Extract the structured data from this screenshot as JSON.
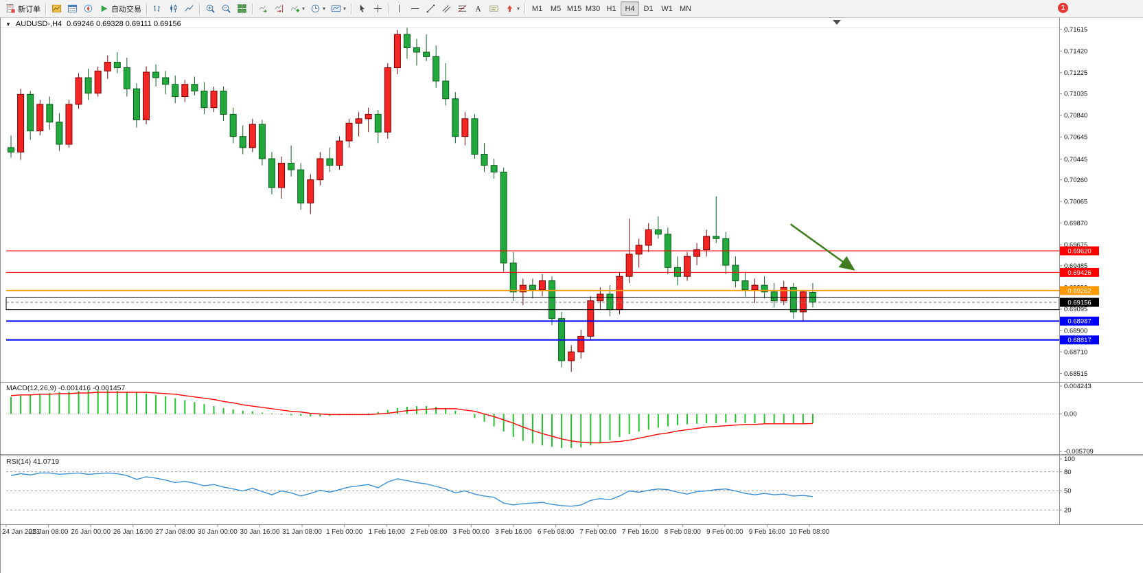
{
  "toolbar": {
    "new_order_label": "新订单",
    "autotrading_label": "自动交易",
    "timeframes": [
      "M1",
      "M5",
      "M15",
      "M30",
      "H1",
      "H4",
      "D1",
      "W1",
      "MN"
    ],
    "active_timeframe": "H4",
    "notification_badge": "1",
    "icons": [
      "new-order",
      "charts",
      "market-watch",
      "navigator",
      "autotrading",
      "bar-chart",
      "candlesticks",
      "line-chart",
      "zoom-in",
      "zoom-out",
      "tile-windows",
      "auto-scroll",
      "chart-shift",
      "indicators",
      "periods",
      "templates",
      "cursor",
      "crosshair",
      "vertical-line",
      "horizontal-line",
      "trendline",
      "equidistant-channel",
      "fibonacci",
      "text",
      "text-label",
      "arrows"
    ]
  },
  "chart": {
    "one_click_glyph": "▼",
    "symbol_period": "AUDUSD-,H4",
    "ohlc": "0.69246 0.69328 0.69111 0.69156"
  },
  "chart_data": [
    {
      "id": "price",
      "type": "candlestick",
      "symbol": "AUDUSD-",
      "timeframe": "H4",
      "current": {
        "open": 0.69246,
        "high": 0.69328,
        "low": 0.69111,
        "close": 0.69156
      },
      "ylim": [
        0.685,
        0.7162
      ],
      "y_ticks": [
        "0.71615",
        "0.71420",
        "0.71225",
        "0.71035",
        "0.70840",
        "0.70645",
        "0.70445",
        "0.70260",
        "0.70065",
        "0.69870",
        "0.69675",
        "0.69485",
        "0.69290",
        "0.69095",
        "0.68900",
        "0.68710",
        "0.68515"
      ],
      "x_labels": [
        "24 Jan 2023",
        "25 Jan 08:00",
        "26 Jan 00:00",
        "26 Jan 16:00",
        "27 Jan 08:00",
        "30 Jan 00:00",
        "30 Jan 16:00",
        "31 Jan 08:00",
        "1 Feb 00:00",
        "1 Feb 16:00",
        "2 Feb 08:00",
        "3 Feb 00:00",
        "3 Feb 16:00",
        "6 Feb 08:00",
        "7 Feb 00:00",
        "7 Feb 16:00",
        "8 Feb 08:00",
        "9 Feb 00:00",
        "9 Feb 16:00",
        "10 Feb 08:00"
      ],
      "colors": {
        "up": "#f42525",
        "down": "#22a83c",
        "up_border": "#7a0000",
        "down_border": "#0b5e1e"
      },
      "candles": [
        [
          0.7055,
          0.7066,
          0.7046,
          0.7051
        ],
        [
          0.7051,
          0.7108,
          0.7044,
          0.7103
        ],
        [
          0.7103,
          0.7106,
          0.7062,
          0.707
        ],
        [
          0.707,
          0.7098,
          0.7066,
          0.7094
        ],
        [
          0.7094,
          0.7101,
          0.7071,
          0.7078
        ],
        [
          0.7078,
          0.7086,
          0.7052,
          0.7058
        ],
        [
          0.7058,
          0.7098,
          0.7055,
          0.7094
        ],
        [
          0.7094,
          0.7122,
          0.709,
          0.7118
        ],
        [
          0.7118,
          0.7126,
          0.7098,
          0.7104
        ],
        [
          0.7104,
          0.7128,
          0.7101,
          0.7124
        ],
        [
          0.7124,
          0.7138,
          0.7117,
          0.7132
        ],
        [
          0.7132,
          0.7141,
          0.7122,
          0.7127
        ],
        [
          0.7127,
          0.7136,
          0.7101,
          0.7108
        ],
        [
          0.7108,
          0.7113,
          0.7073,
          0.708
        ],
        [
          0.708,
          0.7128,
          0.7076,
          0.7123
        ],
        [
          0.7123,
          0.713,
          0.711,
          0.7118
        ],
        [
          0.7118,
          0.7124,
          0.7103,
          0.7112
        ],
        [
          0.7112,
          0.712,
          0.7095,
          0.7101
        ],
        [
          0.7101,
          0.7116,
          0.7096,
          0.7112
        ],
        [
          0.7112,
          0.7119,
          0.7102,
          0.7106
        ],
        [
          0.7106,
          0.7114,
          0.7085,
          0.7091
        ],
        [
          0.7091,
          0.711,
          0.7087,
          0.7106
        ],
        [
          0.7106,
          0.711,
          0.7079,
          0.7085
        ],
        [
          0.7085,
          0.7091,
          0.7059,
          0.7065
        ],
        [
          0.7065,
          0.7075,
          0.7049,
          0.7055
        ],
        [
          0.7055,
          0.7081,
          0.7051,
          0.7076
        ],
        [
          0.7076,
          0.708,
          0.7039,
          0.7045
        ],
        [
          0.7045,
          0.7051,
          0.7013,
          0.7019
        ],
        [
          0.7019,
          0.7047,
          0.7009,
          0.7041
        ],
        [
          0.7041,
          0.7057,
          0.7029,
          0.7035
        ],
        [
          0.7035,
          0.7041,
          0.6999,
          0.7005
        ],
        [
          0.7005,
          0.7031,
          0.6995,
          0.7026
        ],
        [
          0.7026,
          0.7051,
          0.7021,
          0.7045
        ],
        [
          0.7045,
          0.7055,
          0.7033,
          0.7039
        ],
        [
          0.7039,
          0.7065,
          0.7035,
          0.7061
        ],
        [
          0.7061,
          0.7081,
          0.7055,
          0.7077
        ],
        [
          0.7077,
          0.7087,
          0.7065,
          0.7081
        ],
        [
          0.7081,
          0.7091,
          0.7069,
          0.7085
        ],
        [
          0.7085,
          0.7089,
          0.7059,
          0.7069
        ],
        [
          0.7069,
          0.7131,
          0.7063,
          0.7127
        ],
        [
          0.7127,
          0.7161,
          0.7121,
          0.7157
        ],
        [
          0.7157,
          0.7163,
          0.7135,
          0.7145
        ],
        [
          0.7145,
          0.7153,
          0.7129,
          0.7141
        ],
        [
          0.7141,
          0.7157,
          0.7133,
          0.7137
        ],
        [
          0.7137,
          0.7147,
          0.7109,
          0.7115
        ],
        [
          0.7115,
          0.7131,
          0.7093,
          0.7099
        ],
        [
          0.7099,
          0.7105,
          0.7059,
          0.7065
        ],
        [
          0.7065,
          0.7087,
          0.7057,
          0.7081
        ],
        [
          0.7081,
          0.7085,
          0.7045,
          0.7049
        ],
        [
          0.7049,
          0.7059,
          0.7033,
          0.7039
        ],
        [
          0.7039,
          0.7045,
          0.7027,
          0.7033
        ],
        [
          0.7033,
          0.7037,
          0.6943,
          0.6951
        ],
        [
          0.6951,
          0.6961,
          0.6917,
          0.6925
        ],
        [
          0.6925,
          0.6937,
          0.6913,
          0.6931
        ],
        [
          0.6931,
          0.6937,
          0.6919,
          0.6927
        ],
        [
          0.6927,
          0.6941,
          0.6921,
          0.6935
        ],
        [
          0.6935,
          0.6939,
          0.6895,
          0.6901
        ],
        [
          0.6901,
          0.6907,
          0.6857,
          0.6863
        ],
        [
          0.6863,
          0.6877,
          0.6853,
          0.6871
        ],
        [
          0.6871,
          0.6891,
          0.6865,
          0.6885
        ],
        [
          0.6885,
          0.6921,
          0.6881,
          0.6917
        ],
        [
          0.6917,
          0.6929,
          0.6909,
          0.6923
        ],
        [
          0.6923,
          0.6931,
          0.6903,
          0.6909
        ],
        [
          0.6909,
          0.6943,
          0.6905,
          0.6939
        ],
        [
          0.6939,
          0.6991,
          0.6933,
          0.6959
        ],
        [
          0.6959,
          0.6973,
          0.6947,
          0.6967
        ],
        [
          0.6967,
          0.6987,
          0.6961,
          0.6981
        ],
        [
          0.6981,
          0.6993,
          0.6973,
          0.6977
        ],
        [
          0.6977,
          0.6983,
          0.6941,
          0.6947
        ],
        [
          0.6947,
          0.6957,
          0.6931,
          0.6939
        ],
        [
          0.6939,
          0.6961,
          0.6935,
          0.6957
        ],
        [
          0.6957,
          0.6969,
          0.6949,
          0.6963
        ],
        [
          0.6963,
          0.6981,
          0.6957,
          0.6975
        ],
        [
          0.6975,
          0.7011,
          0.6969,
          0.6973
        ],
        [
          0.6973,
          0.6979,
          0.6941,
          0.6949
        ],
        [
          0.6949,
          0.6957,
          0.6929,
          0.6935
        ],
        [
          0.6935,
          0.6943,
          0.6921,
          0.6927
        ],
        [
          0.6927,
          0.6937,
          0.6915,
          0.6931
        ],
        [
          0.6931,
          0.6939,
          0.6919,
          0.6925
        ],
        [
          0.6925,
          0.6933,
          0.6911,
          0.6917
        ],
        [
          0.6917,
          0.6935,
          0.6913,
          0.6929
        ],
        [
          0.6929,
          0.6933,
          0.6901,
          0.6907
        ],
        [
          0.6907,
          0.6927,
          0.6899,
          0.6925
        ],
        [
          0.69246,
          0.69328,
          0.69111,
          0.69156
        ]
      ],
      "levels": [
        {
          "price": 0.6962,
          "color": "#ff0000",
          "width": 1.2,
          "label": "0.69620"
        },
        {
          "price": 0.69426,
          "color": "#ff0000",
          "width": 1.2,
          "label": "0.69426"
        },
        {
          "price": 0.69262,
          "color": "#ff9900",
          "width": 2,
          "label": "0.69262"
        },
        {
          "price": 0.69156,
          "color": "#777777",
          "width": 1,
          "style": "dashed",
          "label": "0.69156",
          "label_bg": "#000000"
        },
        {
          "price": 0.68987,
          "color": "#0000ff",
          "width": 2,
          "label": "0.68987"
        },
        {
          "price": 0.68817,
          "color": "#0000ff",
          "width": 2,
          "label": "0.68817"
        }
      ],
      "rect_zone": {
        "top": 0.692,
        "bottom": 0.6909,
        "color": "#000000"
      },
      "arrow": {
        "from_index": 81.2,
        "from_price": 0.6986,
        "to_index": 87.6,
        "to_price": 0.6946,
        "color": "#3f7d20"
      }
    },
    {
      "id": "macd",
      "type": "bar+line",
      "label": "MACD(12,26,9) -0.001416 -0.001457",
      "ylim": [
        -0.005709,
        0.004243
      ],
      "y_ticks": [
        "0.004243",
        "0.00",
        "-0.005709"
      ],
      "colors": {
        "histogram": "#22c32a",
        "signal": "#ff0000"
      },
      "histogram": [
        0.0026,
        0.0028,
        0.003,
        0.0031,
        0.0032,
        0.0033,
        0.0034,
        0.0035,
        0.0036,
        0.0036,
        0.0036,
        0.0035,
        0.0034,
        0.0033,
        0.0031,
        0.0029,
        0.0027,
        0.0024,
        0.0021,
        0.0018,
        0.0015,
        0.0012,
        0.0009,
        0.0007,
        0.0005,
        0.0004,
        0.0002,
        0.0001,
        -0.0001,
        -0.0002,
        -0.0003,
        -0.0004,
        -0.0004,
        -0.0003,
        -0.0002,
        -0.0001,
        0.0,
        0.0001,
        0.0003,
        0.0006,
        0.0009,
        0.0011,
        0.0012,
        0.0012,
        0.0011,
        0.0009,
        0.0005,
        0.0,
        -0.0006,
        -0.0012,
        -0.0019,
        -0.0027,
        -0.0035,
        -0.0041,
        -0.0045,
        -0.0048,
        -0.005,
        -0.0052,
        -0.0052,
        -0.0051,
        -0.0048,
        -0.0044,
        -0.004,
        -0.0035,
        -0.0031,
        -0.0027,
        -0.0024,
        -0.0021,
        -0.0019,
        -0.0017,
        -0.0016,
        -0.0015,
        -0.0014,
        -0.0014,
        -0.0013,
        -0.0013,
        -0.0014,
        -0.0014,
        -0.0014,
        -0.0014,
        -0.0014,
        -0.0014,
        -0.0014,
        -0.001416
      ],
      "signal": [
        0.0028,
        0.0029,
        0.0029,
        0.003,
        0.003,
        0.0031,
        0.0031,
        0.0032,
        0.0032,
        0.0033,
        0.0033,
        0.0033,
        0.0033,
        0.0033,
        0.0033,
        0.0032,
        0.0031,
        0.003,
        0.0028,
        0.0026,
        0.0024,
        0.0022,
        0.0019,
        0.0017,
        0.0014,
        0.0012,
        0.001,
        0.0008,
        0.0006,
        0.0004,
        0.0003,
        0.0001,
        0.0,
        -0.0001,
        -0.0001,
        -0.0001,
        -0.0001,
        -0.0001,
        0.0,
        0.0001,
        0.0003,
        0.0005,
        0.0006,
        0.0007,
        0.0008,
        0.0008,
        0.0008,
        0.0006,
        0.0004,
        0.0,
        -0.0004,
        -0.0009,
        -0.0014,
        -0.002,
        -0.0025,
        -0.003,
        -0.0034,
        -0.0038,
        -0.0041,
        -0.0043,
        -0.0044,
        -0.0044,
        -0.0043,
        -0.0042,
        -0.004,
        -0.0037,
        -0.0034,
        -0.0031,
        -0.0029,
        -0.0026,
        -0.0024,
        -0.0022,
        -0.002,
        -0.0019,
        -0.0018,
        -0.0017,
        -0.0016,
        -0.0016,
        -0.0015,
        -0.0015,
        -0.0015,
        -0.0015,
        -0.0015,
        -0.001457
      ]
    },
    {
      "id": "rsi",
      "type": "line",
      "label": "RSI(14) 41.0719",
      "ylim": [
        0,
        100
      ],
      "y_ticks": [
        100,
        80,
        50,
        20
      ],
      "levels": [
        80,
        50,
        20
      ],
      "color": "#3c8fd6",
      "values": [
        74,
        77,
        75,
        78,
        78,
        76,
        77,
        78,
        76,
        77,
        78,
        77,
        74,
        68,
        72,
        70,
        67,
        63,
        65,
        62,
        58,
        60,
        56,
        53,
        50,
        54,
        49,
        44,
        50,
        47,
        42,
        46,
        51,
        48,
        52,
        56,
        58,
        60,
        55,
        64,
        69,
        66,
        63,
        61,
        57,
        53,
        47,
        50,
        45,
        42,
        40,
        31,
        28,
        30,
        31,
        32,
        29,
        27,
        26,
        28,
        35,
        38,
        36,
        42,
        50,
        48,
        51,
        53,
        52,
        48,
        45,
        49,
        50,
        52,
        53,
        50,
        46,
        44,
        46,
        44,
        45,
        42,
        43,
        41.07
      ]
    }
  ]
}
